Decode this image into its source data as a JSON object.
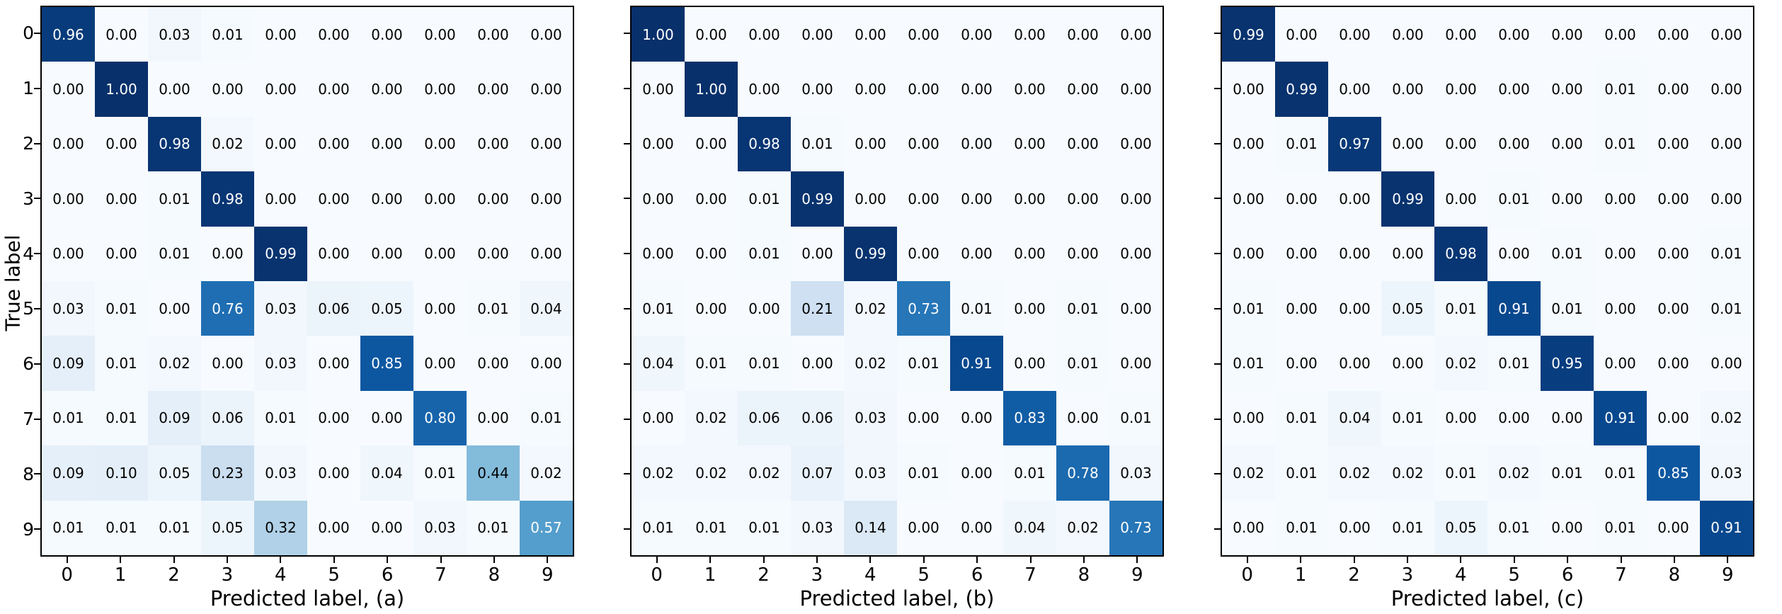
{
  "figure": {
    "ylabel": "True label",
    "colormap": "Blues",
    "color_min": "#f7fbff",
    "color_max": "#08306b",
    "white_text_threshold": 0.5
  },
  "chart_data": [
    {
      "type": "heatmap",
      "title": "",
      "xlabel": "Predicted label, (a)",
      "ylabel": "True label",
      "x_ticks": [
        "0",
        "1",
        "2",
        "3",
        "4",
        "5",
        "6",
        "7",
        "8",
        "9"
      ],
      "y_ticks": [
        "0",
        "1",
        "2",
        "3",
        "4",
        "5",
        "6",
        "7",
        "8",
        "9"
      ],
      "colormap": "Blues",
      "vmin": 0,
      "vmax": 1,
      "values": [
        [
          0.96,
          0.0,
          0.03,
          0.01,
          0.0,
          0.0,
          0.0,
          0.0,
          0.0,
          0.0
        ],
        [
          0.0,
          1.0,
          0.0,
          0.0,
          0.0,
          0.0,
          0.0,
          0.0,
          0.0,
          0.0
        ],
        [
          0.0,
          0.0,
          0.98,
          0.02,
          0.0,
          0.0,
          0.0,
          0.0,
          0.0,
          0.0
        ],
        [
          0.0,
          0.0,
          0.01,
          0.98,
          0.0,
          0.0,
          0.0,
          0.0,
          0.0,
          0.0
        ],
        [
          0.0,
          0.0,
          0.01,
          0.0,
          0.99,
          0.0,
          0.0,
          0.0,
          0.0,
          0.0
        ],
        [
          0.03,
          0.01,
          0.0,
          0.76,
          0.03,
          0.06,
          0.05,
          0.0,
          0.01,
          0.04
        ],
        [
          0.09,
          0.01,
          0.02,
          0.0,
          0.03,
          0.0,
          0.85,
          0.0,
          0.0,
          0.0
        ],
        [
          0.01,
          0.01,
          0.09,
          0.06,
          0.01,
          0.0,
          0.0,
          0.8,
          0.0,
          0.01
        ],
        [
          0.09,
          0.1,
          0.05,
          0.23,
          0.03,
          0.0,
          0.04,
          0.01,
          0.44,
          0.02
        ],
        [
          0.01,
          0.01,
          0.01,
          0.05,
          0.32,
          0.0,
          0.0,
          0.03,
          0.01,
          0.57
        ]
      ]
    },
    {
      "type": "heatmap",
      "title": "",
      "xlabel": "Predicted label, (b)",
      "ylabel": "",
      "x_ticks": [
        "0",
        "1",
        "2",
        "3",
        "4",
        "5",
        "6",
        "7",
        "8",
        "9"
      ],
      "y_ticks": [
        "0",
        "1",
        "2",
        "3",
        "4",
        "5",
        "6",
        "7",
        "8",
        "9"
      ],
      "colormap": "Blues",
      "vmin": 0,
      "vmax": 1,
      "values": [
        [
          1.0,
          0.0,
          0.0,
          0.0,
          0.0,
          0.0,
          0.0,
          0.0,
          0.0,
          0.0
        ],
        [
          0.0,
          1.0,
          0.0,
          0.0,
          0.0,
          0.0,
          0.0,
          0.0,
          0.0,
          0.0
        ],
        [
          0.0,
          0.0,
          0.98,
          0.01,
          0.0,
          0.0,
          0.0,
          0.0,
          0.0,
          0.0
        ],
        [
          0.0,
          0.0,
          0.01,
          0.99,
          0.0,
          0.0,
          0.0,
          0.0,
          0.0,
          0.0
        ],
        [
          0.0,
          0.0,
          0.01,
          0.0,
          0.99,
          0.0,
          0.0,
          0.0,
          0.0,
          0.0
        ],
        [
          0.01,
          0.0,
          0.0,
          0.21,
          0.02,
          0.73,
          0.01,
          0.0,
          0.01,
          0.0
        ],
        [
          0.04,
          0.01,
          0.01,
          0.0,
          0.02,
          0.01,
          0.91,
          0.0,
          0.01,
          0.0
        ],
        [
          0.0,
          0.02,
          0.06,
          0.06,
          0.03,
          0.0,
          0.0,
          0.83,
          0.0,
          0.01
        ],
        [
          0.02,
          0.02,
          0.02,
          0.07,
          0.03,
          0.01,
          0.0,
          0.01,
          0.78,
          0.03
        ],
        [
          0.01,
          0.01,
          0.01,
          0.03,
          0.14,
          0.0,
          0.0,
          0.04,
          0.02,
          0.73
        ]
      ]
    },
    {
      "type": "heatmap",
      "title": "",
      "xlabel": "Predicted label, (c)",
      "ylabel": "",
      "x_ticks": [
        "0",
        "1",
        "2",
        "3",
        "4",
        "5",
        "6",
        "7",
        "8",
        "9"
      ],
      "y_ticks": [
        "0",
        "1",
        "2",
        "3",
        "4",
        "5",
        "6",
        "7",
        "8",
        "9"
      ],
      "colormap": "Blues",
      "vmin": 0,
      "vmax": 1,
      "values": [
        [
          0.99,
          0.0,
          0.0,
          0.0,
          0.0,
          0.0,
          0.0,
          0.0,
          0.0,
          0.0
        ],
        [
          0.0,
          0.99,
          0.0,
          0.0,
          0.0,
          0.0,
          0.0,
          0.01,
          0.0,
          0.0
        ],
        [
          0.0,
          0.01,
          0.97,
          0.0,
          0.0,
          0.0,
          0.0,
          0.01,
          0.0,
          0.0
        ],
        [
          0.0,
          0.0,
          0.0,
          0.99,
          0.0,
          0.01,
          0.0,
          0.0,
          0.0,
          0.0
        ],
        [
          0.0,
          0.0,
          0.0,
          0.0,
          0.98,
          0.0,
          0.01,
          0.0,
          0.0,
          0.01
        ],
        [
          0.01,
          0.0,
          0.0,
          0.05,
          0.01,
          0.91,
          0.01,
          0.0,
          0.0,
          0.01
        ],
        [
          0.01,
          0.0,
          0.0,
          0.0,
          0.02,
          0.01,
          0.95,
          0.0,
          0.0,
          0.0
        ],
        [
          0.0,
          0.01,
          0.04,
          0.01,
          0.0,
          0.0,
          0.0,
          0.91,
          0.0,
          0.02
        ],
        [
          0.02,
          0.01,
          0.02,
          0.02,
          0.01,
          0.02,
          0.01,
          0.01,
          0.85,
          0.03
        ],
        [
          0.0,
          0.01,
          0.0,
          0.01,
          0.05,
          0.01,
          0.0,
          0.01,
          0.0,
          0.91
        ]
      ]
    }
  ]
}
